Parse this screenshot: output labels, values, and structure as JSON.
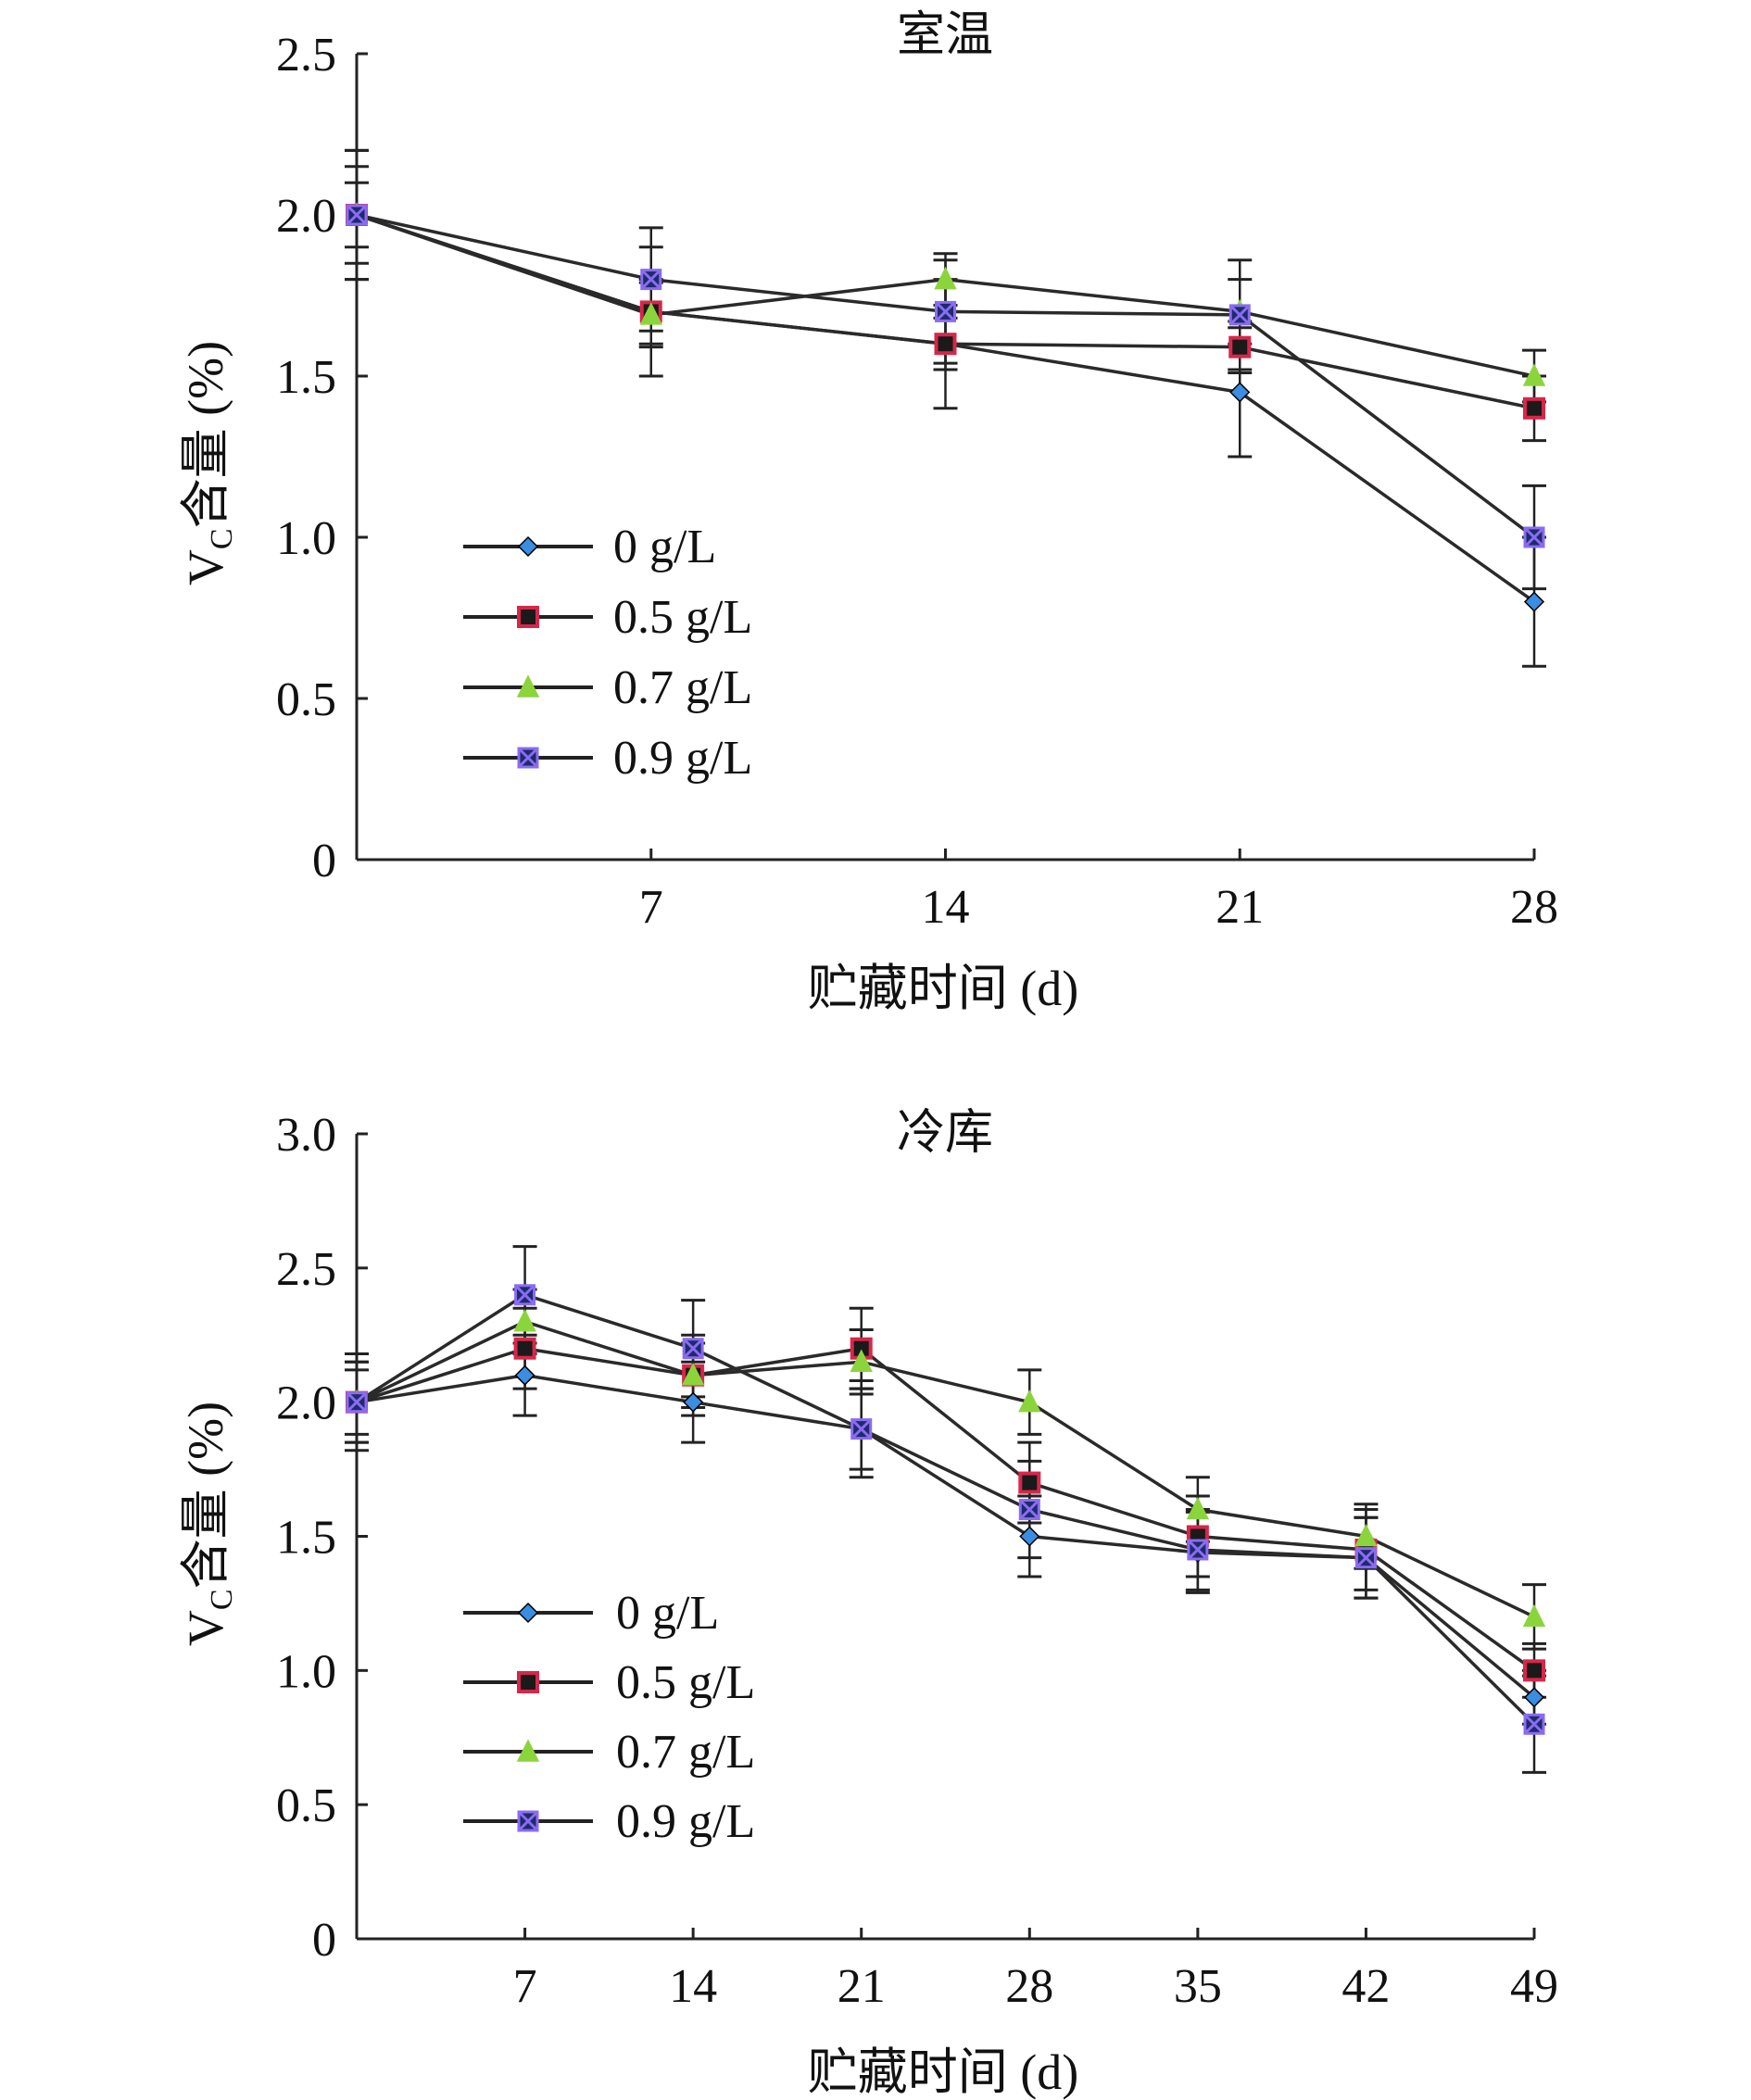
{
  "chart_data": [
    {
      "type": "line",
      "title": "室温",
      "xlabel": "贮藏时间 (d)",
      "ylabel_main": "V",
      "ylabel_sub": "C",
      "ylabel_rest": "含量 (%)",
      "x": [
        0,
        7,
        14,
        21,
        28
      ],
      "xticks": [
        "7",
        "14",
        "21",
        "28"
      ],
      "yticks": [
        "0",
        "0.5",
        "1.0",
        "1.5",
        "2.0",
        "2.5"
      ],
      "ylim": [
        0,
        2.5
      ],
      "legend_position": "lower-left",
      "series": [
        {
          "name": "0 g/L",
          "values": [
            2.0,
            1.7,
            1.6,
            1.45,
            0.8
          ],
          "errors": [
            0.2,
            0.2,
            0.2,
            0.2,
            0.2
          ]
        },
        {
          "name": "0.5 g/L",
          "values": [
            2.0,
            1.7,
            1.6,
            1.59,
            1.4
          ],
          "errors": [
            0.1,
            0.1,
            0.08,
            0.08,
            0.1
          ]
        },
        {
          "name": "0.7 g/L",
          "values": [
            2.0,
            1.69,
            1.8,
            1.7,
            1.5
          ],
          "errors": [
            0.15,
            0.1,
            0.08,
            0.1,
            0.08
          ]
        },
        {
          "name": "0.9 g/L",
          "values": [
            2.0,
            1.8,
            1.7,
            1.69,
            1.0
          ],
          "errors": [
            0.2,
            0.16,
            0.16,
            0.17,
            0.16
          ]
        }
      ]
    },
    {
      "type": "line",
      "title": "冷库",
      "xlabel": "贮藏时间 (d)",
      "ylabel_main": "V",
      "ylabel_sub": "C",
      "ylabel_rest": "含量 (%)",
      "x": [
        0,
        7,
        14,
        21,
        28,
        35,
        42,
        49
      ],
      "xticks": [
        "7",
        "14",
        "21",
        "28",
        "35",
        "42",
        "49"
      ],
      "yticks": [
        "0",
        "0.5",
        "1.0",
        "1.5",
        "2.0",
        "2.5",
        "3.0"
      ],
      "ylim": [
        0,
        3.0
      ],
      "legend_position": "lower-left",
      "series": [
        {
          "name": "0 g/L",
          "values": [
            2.0,
            2.1,
            2.0,
            1.9,
            1.5,
            1.44,
            1.42,
            0.9
          ],
          "errors": [
            0.15,
            0.15,
            0.15,
            0.15,
            0.15,
            0.15,
            0.15,
            0.1
          ]
        },
        {
          "name": "0.5 g/L",
          "values": [
            2.0,
            2.2,
            2.1,
            2.2,
            1.7,
            1.5,
            1.45,
            1.0
          ],
          "errors": [
            0.15,
            0.15,
            0.15,
            0.15,
            0.15,
            0.15,
            0.15,
            0.1
          ]
        },
        {
          "name": "0.7 g/L",
          "values": [
            2.0,
            2.3,
            2.1,
            2.15,
            2.0,
            1.6,
            1.5,
            1.2
          ],
          "errors": [
            0.12,
            0.12,
            0.12,
            0.12,
            0.12,
            0.12,
            0.12,
            0.12
          ]
        },
        {
          "name": "0.9 g/L",
          "values": [
            2.0,
            2.4,
            2.2,
            1.9,
            1.6,
            1.45,
            1.42,
            0.8
          ],
          "errors": [
            0.18,
            0.18,
            0.18,
            0.18,
            0.18,
            0.15,
            0.15,
            0.18
          ]
        }
      ]
    }
  ],
  "series_styles": [
    {
      "marker": "diamond",
      "fill": "#3a8de0",
      "stroke": "#000000"
    },
    {
      "marker": "square",
      "fill": "#1a1a1a",
      "stroke": "#d8264a"
    },
    {
      "marker": "triangle",
      "fill": "#8cd43c",
      "stroke": "#8cd43c"
    },
    {
      "marker": "square-x",
      "fill": "#1e2a6e",
      "stroke": "#8a6cf0"
    }
  ]
}
